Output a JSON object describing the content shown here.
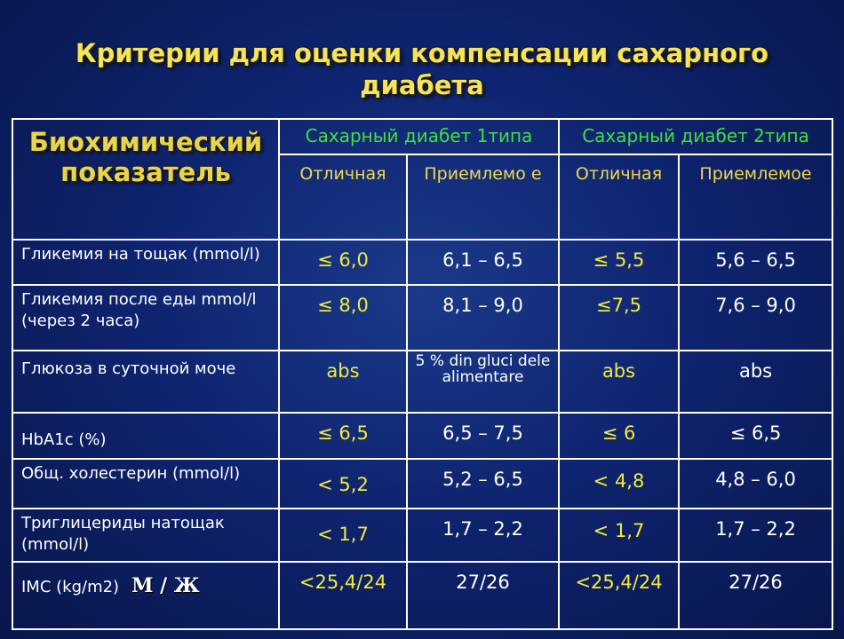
{
  "title": {
    "line1": "Критерии для оценки компенсации сахарного",
    "line2": "диабета"
  },
  "header": {
    "indicator": "Биохимический показатель",
    "type1": "Сахарный диабет 1типа",
    "type2": "Сахарный диабет 2типа",
    "t1_excellent": "Отличная",
    "t1_acceptable": "Приемлемо е",
    "t2_excellent": "Отличная",
    "t2_acceptable": "Приемлемое"
  },
  "rows": [
    {
      "label": "Гликемия на тощак (mmol/l)",
      "t1_excellent": "≤ 6,0",
      "t1_acceptable": "6,1 – 6,5",
      "t2_excellent": "≤ 5,5",
      "t2_acceptable": "5,6 – 6,5"
    },
    {
      "label": "Гликемия после еды mmol/l (через 2 часа)",
      "t1_excellent": "≤ 8,0",
      "t1_acceptable": "8,1 – 9,0",
      "t2_excellent": "≤7,5",
      "t2_acceptable": "7,6 – 9,0"
    },
    {
      "label": "Глюкоза в суточной моче",
      "t1_excellent": "abs",
      "t1_acceptable": "5 % din gluci dele alimentare",
      "t2_excellent": "abs",
      "t2_acceptable": "abs"
    },
    {
      "label": "HbA1c (%)",
      "t1_excellent": "≤ 6,5",
      "t1_acceptable": "6,5 – 7,5",
      "t2_excellent": "≤ 6",
      "t2_acceptable": "≤ 6,5"
    },
    {
      "label": "Общ. холестерин (mmol/l)",
      "t1_excellent": "< 5,2",
      "t1_acceptable": "5,2 – 6,5",
      "t2_excellent": "< 4,8",
      "t2_acceptable": "4,8 – 6,0"
    },
    {
      "label": "Триглицериды натощак (mmol/l)",
      "t1_excellent": "< 1,7",
      "t1_acceptable": "1,7 – 2,2",
      "t2_excellent": "< 1,7",
      "t2_acceptable": "1,7 – 2,2"
    },
    {
      "label": "IMC (kg/m2)",
      "label_suffix": "М / Ж",
      "t1_excellent": "<25,4/24",
      "t1_acceptable": "27/26",
      "t2_excellent": "<25,4/24",
      "t2_acceptable": "27/26"
    }
  ],
  "colors": {
    "background": "#0f2470",
    "title": "#f5e35a",
    "group_header": "#3fe03f",
    "excellent_values": "#f2ea3a",
    "other_values": "#ffffff"
  }
}
